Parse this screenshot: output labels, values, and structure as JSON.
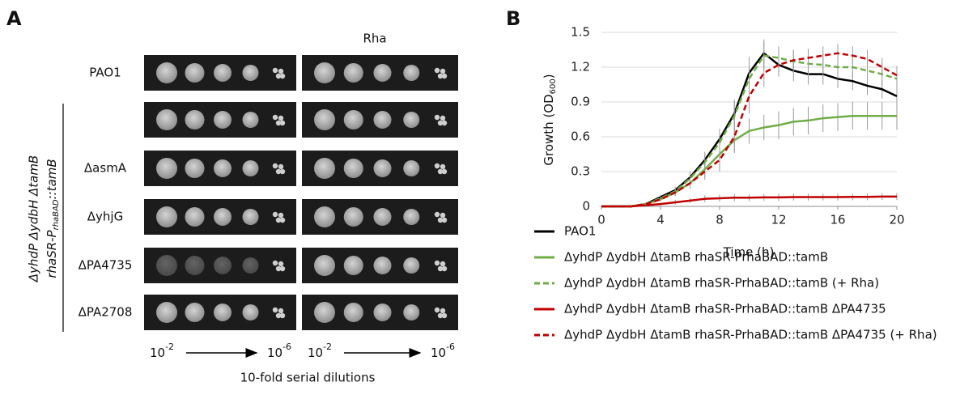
{
  "panel_a": {
    "label": "A",
    "rha_label": "Rha",
    "group_label": {
      "line1": "ΔyhdP ΔydbH ΔtamB",
      "line2": [
        "rhaSR-P",
        "rhaBAD",
        "::tamB"
      ]
    },
    "rows": [
      "PAO1",
      null,
      "ΔasmA",
      "ΔyhjG",
      "ΔPA4735",
      "ΔPA2708"
    ],
    "dilution_start": {
      "base": "10",
      "exp": "-2"
    },
    "dilution_end": {
      "base": "10",
      "exp": "-6"
    },
    "footer": "10-fold serial dilutions"
  },
  "chart_data": {
    "type": "line",
    "panel_label": "B",
    "ylabel": [
      "Growth (OD",
      "600",
      ")"
    ],
    "xlabel": "Time (h)",
    "x": [
      0,
      1,
      2,
      3,
      4,
      5,
      6,
      7,
      8,
      9,
      10,
      11,
      12,
      13,
      14,
      15,
      16,
      17,
      18,
      19,
      20
    ],
    "xlim": [
      0,
      20
    ],
    "xticks": [
      0,
      4,
      8,
      12,
      16,
      20
    ],
    "ylim": [
      0,
      1.5
    ],
    "yticks": [
      0,
      0.3,
      0.6,
      0.9,
      1.2,
      1.5
    ],
    "grid": true,
    "series": [
      {
        "name": "PAO1",
        "color": "#000000",
        "dashed": false,
        "values": [
          0,
          0,
          0,
          0.02,
          0.08,
          0.14,
          0.25,
          0.4,
          0.58,
          0.8,
          1.15,
          1.32,
          1.22,
          1.17,
          1.14,
          1.14,
          1.1,
          1.08,
          1.04,
          1.01,
          0.95
        ],
        "errors": [
          0,
          0,
          0,
          0.01,
          0.02,
          0.03,
          0.05,
          0.07,
          0.09,
          0.12,
          0.14,
          0.12,
          0.1,
          0.09,
          0.09,
          0.09,
          0.08,
          0.08,
          0.08,
          0.08,
          0.08
        ]
      },
      {
        "name": "ΔyhdP ΔydbH ΔtamB rhaSR-PrhaBAD::tamB",
        "color": "#70ad47",
        "dashed": false,
        "values": [
          0,
          0,
          0,
          0.02,
          0.06,
          0.12,
          0.2,
          0.32,
          0.45,
          0.57,
          0.65,
          0.68,
          0.7,
          0.73,
          0.74,
          0.76,
          0.77,
          0.78,
          0.78,
          0.78,
          0.78
        ],
        "errors": [
          0,
          0,
          0,
          0.01,
          0.02,
          0.03,
          0.05,
          0.07,
          0.09,
          0.1,
          0.11,
          0.11,
          0.12,
          0.12,
          0.12,
          0.12,
          0.12,
          0.12,
          0.12,
          0.12,
          0.12
        ]
      },
      {
        "name": "ΔyhdP ΔydbH ΔtamB rhaSR-PrhaBAD::tamB (+ Rha)",
        "color": "#70ad47",
        "dashed": true,
        "values": [
          0,
          0,
          0,
          0.02,
          0.07,
          0.13,
          0.24,
          0.38,
          0.55,
          0.78,
          1.1,
          1.3,
          1.28,
          1.25,
          1.23,
          1.22,
          1.2,
          1.2,
          1.17,
          1.14,
          1.1
        ],
        "errors": [
          0,
          0,
          0,
          0.01,
          0.02,
          0.03,
          0.05,
          0.07,
          0.1,
          0.13,
          0.15,
          0.12,
          0.1,
          0.1,
          0.1,
          0.1,
          0.1,
          0.1,
          0.1,
          0.1,
          0.1
        ]
      },
      {
        "name": "ΔyhdP ΔydbH ΔtamB rhaSR-PrhaBAD::tamB ΔPA4735",
        "color": "#c00000",
        "dashed": false,
        "values": [
          0,
          0,
          0,
          0.01,
          0.02,
          0.035,
          0.05,
          0.065,
          0.07,
          0.075,
          0.075,
          0.078,
          0.078,
          0.08,
          0.08,
          0.08,
          0.08,
          0.082,
          0.082,
          0.085,
          0.085
        ],
        "errors": [
          0,
          0,
          0,
          0.01,
          0.01,
          0.02,
          0.02,
          0.03,
          0.03,
          0.03,
          0.03,
          0.03,
          0.03,
          0.03,
          0.03,
          0.03,
          0.03,
          0.03,
          0.03,
          0.03,
          0.03
        ]
      },
      {
        "name": "ΔyhdP ΔydbH ΔtamB rhaSR-PrhaBAD::tamB ΔPA4735 (+ Rha)",
        "color": "#c00000",
        "dashed": true,
        "values": [
          0,
          0,
          0,
          0.02,
          0.06,
          0.12,
          0.2,
          0.3,
          0.4,
          0.6,
          0.95,
          1.15,
          1.22,
          1.26,
          1.28,
          1.3,
          1.32,
          1.3,
          1.27,
          1.2,
          1.13
        ],
        "errors": [
          0,
          0,
          0,
          0.01,
          0.02,
          0.03,
          0.05,
          0.07,
          0.1,
          0.14,
          0.15,
          0.12,
          0.1,
          0.09,
          0.08,
          0.08,
          0.08,
          0.08,
          0.08,
          0.08,
          0.08
        ]
      }
    ]
  }
}
